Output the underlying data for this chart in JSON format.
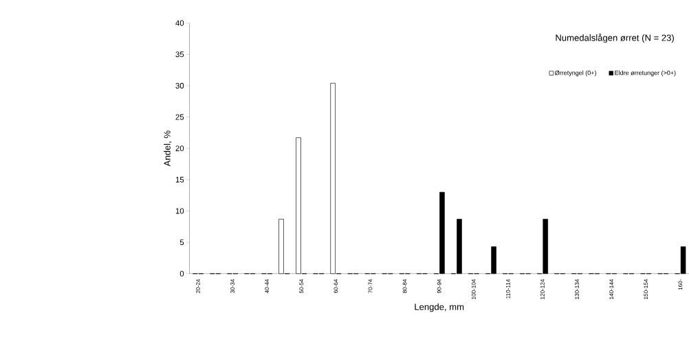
{
  "chart_data": {
    "type": "bar",
    "title": "Numedalslågen ørret (N = 23)",
    "xlabel": "Lengde, mm",
    "ylabel": "Andel, %",
    "categories": [
      "20-24",
      null,
      "30-34",
      null,
      "40-44",
      null,
      "50-54",
      null,
      "60-64",
      null,
      "70-74",
      null,
      "80-84",
      null,
      "90-94",
      null,
      "100-104",
      null,
      "110-114",
      null,
      "120-124",
      null,
      "130-134",
      null,
      "140-144",
      null,
      "150-154",
      null,
      "160-"
    ],
    "series": [
      {
        "name": "Ørretyngel (0+)",
        "color": "#ffffff",
        "values": [
          0,
          0,
          0,
          0,
          0,
          8.7,
          21.7,
          0,
          30.4,
          0,
          0,
          0,
          0,
          0,
          0,
          0,
          0,
          0,
          0,
          0,
          0,
          0,
          0,
          0,
          0,
          0,
          0,
          0,
          0
        ]
      },
      {
        "name": "Eldre ørretunger (>0+)",
        "color": "#000000",
        "values": [
          0,
          0,
          0,
          0,
          0,
          0,
          0,
          0,
          0,
          0,
          0,
          0,
          0,
          0,
          13.0,
          8.7,
          0,
          4.3,
          0,
          0,
          8.7,
          0,
          0,
          0,
          0,
          0,
          0,
          0,
          4.3
        ]
      }
    ],
    "ylim": [
      0,
      40
    ],
    "yticks": [
      0,
      5,
      10,
      15,
      20,
      25,
      30,
      35,
      40
    ],
    "grid": false,
    "legend": "top right"
  }
}
